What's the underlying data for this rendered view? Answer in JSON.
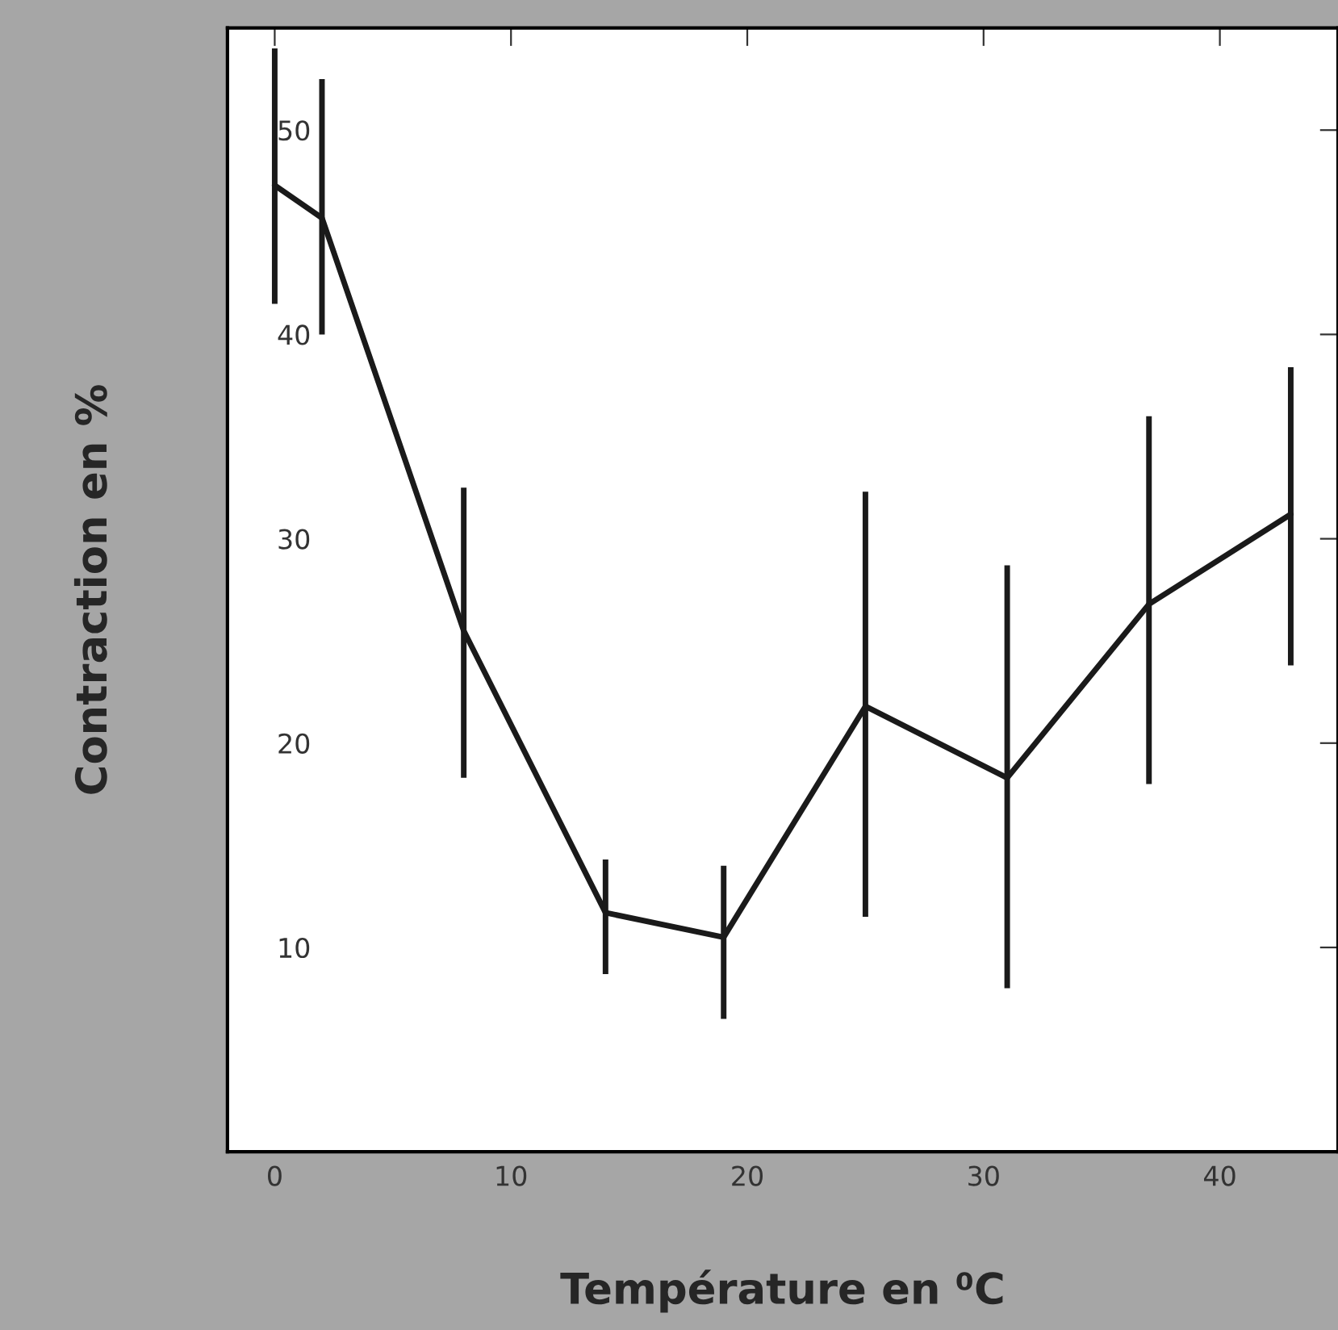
{
  "chart_data": {
    "type": "line",
    "xlabel": "Température en ⁰C",
    "ylabel": "Contraction en %",
    "x": [
      0,
      2,
      8,
      14,
      19,
      25,
      31,
      37,
      43
    ],
    "series": [
      {
        "color": "#1a1a1a",
        "values": [
          47.3,
          45.7,
          25.5,
          11.7,
          10.5,
          21.8,
          18.3,
          26.8,
          31.2
        ],
        "errors": [
          [
            41.5,
            54
          ],
          [
            40,
            52.5
          ],
          [
            18.3,
            32.5
          ],
          [
            8.7,
            14.3
          ],
          [
            6.5,
            14
          ],
          [
            11.5,
            32.3
          ],
          [
            8,
            28.7
          ],
          [
            18,
            36
          ],
          [
            23.8,
            38.4
          ]
        ]
      }
    ],
    "xlim": [
      -2,
      45
    ],
    "ylim": [
      0,
      55
    ],
    "xticks": [
      0,
      10,
      20,
      30,
      40
    ],
    "yticks": [
      10,
      20,
      30,
      40,
      50
    ],
    "grid": false
  }
}
